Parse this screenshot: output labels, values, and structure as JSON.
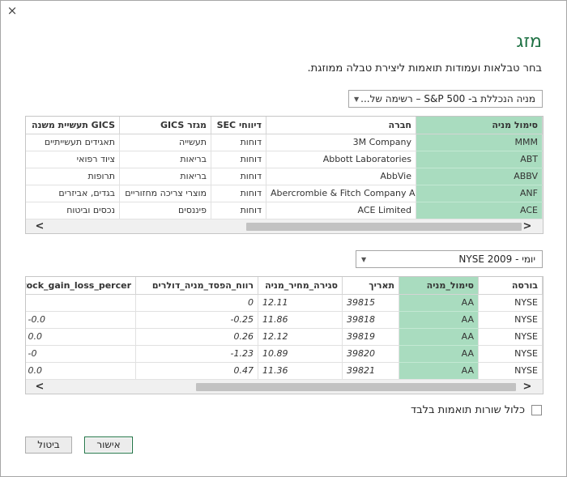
{
  "dialog": {
    "title": "מזג",
    "subtitle": "בחר טבלאות ועמודות תואמות ליצירת טבלה ממוזגת.",
    "close_glyph": "×"
  },
  "table1": {
    "selector": "מניה הנכללת ב- S&P 500 – רשימה של...",
    "columns": [
      "סימול מניה",
      "חברה",
      "דיווחי SEC",
      "מגזר GICS",
      "GICS תעשיית משנה"
    ],
    "rows": [
      [
        "MMM",
        "3M Company",
        "דוחות",
        "תעשייה",
        "תאגידים תעשייתיים"
      ],
      [
        "ABT",
        "Abbott Laboratories",
        "דוחות",
        "בריאות",
        "ציוד רפואי"
      ],
      [
        "ABBV",
        "AbbVie",
        "דוחות",
        "בריאות",
        "תרופות"
      ],
      [
        "ANF",
        "Abercrombie & Fitch Company A",
        "דוחות",
        "מוצרי צריכה מחזוריים",
        "בגדים, אביזרים"
      ],
      [
        "ACE",
        "ACE Limited",
        "דוחות",
        "פיננסים",
        "נכסים וביטוח"
      ]
    ]
  },
  "table2": {
    "selector": "יומי - NYSE 2009",
    "columns": [
      "בורסה",
      "סימול_מניה",
      "תאריך",
      "סגירה_מחיר_מניה",
      "רווח_הפסד_מניה_דולרים",
      "stock_gain_loss_percer"
    ],
    "rows": [
      [
        "NYSE",
        "AA",
        "39815",
        "12.11",
        "0",
        ""
      ],
      [
        "NYSE",
        "AA",
        "39818",
        "11.86",
        "-0.25",
        "-0.0"
      ],
      [
        "NYSE",
        "AA",
        "39819",
        "12.12",
        "0.26",
        "0.0"
      ],
      [
        "NYSE",
        "AA",
        "39820",
        "10.89",
        "-1.23",
        "-0"
      ],
      [
        "NYSE",
        "AA",
        "39821",
        "11.36",
        "0.47",
        "0.0"
      ]
    ]
  },
  "options": {
    "only_matching_label": "כלול שורות תואמות בלבד",
    "only_matching_checked": false
  },
  "buttons": {
    "ok": "אישור",
    "cancel": "ביטול"
  },
  "scroll_arrows": {
    "left": "<",
    "right": ">"
  },
  "colors": {
    "accent": "#217346",
    "key_column": "#a9dcbf"
  }
}
